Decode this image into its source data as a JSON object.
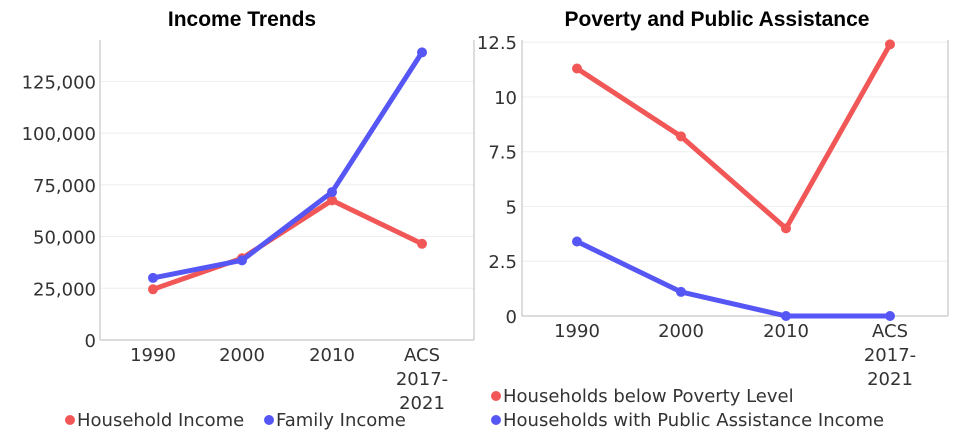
{
  "colors": {
    "red": "#f25757",
    "blue": "#5656f5"
  },
  "chart_data": [
    {
      "type": "line",
      "title": "Income Trends",
      "categories": [
        "1990",
        "2000",
        "2010",
        "ACS 2017-2021"
      ],
      "category_lines": [
        [
          "1990"
        ],
        [
          "2000"
        ],
        [
          "2010"
        ],
        [
          "ACS",
          "2017-",
          "2021"
        ]
      ],
      "ylim": [
        0,
        145000
      ],
      "yticks": [
        0,
        25000,
        50000,
        75000,
        100000,
        125000
      ],
      "ytick_labels": [
        "0",
        "25,000",
        "50,000",
        "75,000",
        "100,000",
        "125,000"
      ],
      "grid": true,
      "legend_position": "bottom",
      "series": [
        {
          "name": "Household Income",
          "color": "#f25757",
          "values": [
            24500,
            39500,
            67500,
            46500
          ]
        },
        {
          "name": "Family Income",
          "color": "#5656f5",
          "values": [
            30000,
            38500,
            71500,
            139000
          ]
        }
      ]
    },
    {
      "type": "line",
      "title": "Poverty and Public Assistance",
      "categories": [
        "1990",
        "2000",
        "2010",
        "ACS 2017-2021"
      ],
      "category_lines": [
        [
          "1990"
        ],
        [
          "2000"
        ],
        [
          "2010"
        ],
        [
          "ACS",
          "2017-",
          "2021"
        ]
      ],
      "ylim": [
        0,
        12.6
      ],
      "yticks": [
        0,
        2.5,
        5,
        7.5,
        10,
        12.5
      ],
      "ytick_labels": [
        "0",
        "2.5",
        "5",
        "7.5",
        "10",
        "12.5"
      ],
      "grid": true,
      "legend_position": "bottom",
      "series": [
        {
          "name": "Households below Poverty Level",
          "color": "#f25757",
          "values": [
            11.3,
            8.2,
            4.0,
            12.4
          ]
        },
        {
          "name": "Households with Public Assistance Income",
          "color": "#5656f5",
          "values": [
            3.4,
            1.1,
            0,
            0
          ]
        }
      ]
    }
  ]
}
